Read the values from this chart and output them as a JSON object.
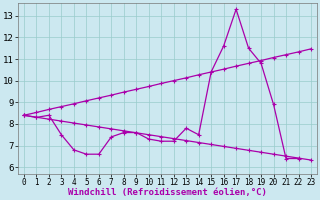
{
  "bg_color": "#cce8f0",
  "line_color": "#aa00aa",
  "marker": "+",
  "markersize": 3,
  "linewidth": 0.9,
  "xlabel": "Windchill (Refroidissement éolien,°C)",
  "xlabel_fontsize": 6.5,
  "ylabel_ticks": [
    6,
    7,
    8,
    9,
    10,
    11,
    12,
    13
  ],
  "xlabel_ticks": [
    0,
    1,
    2,
    3,
    4,
    5,
    6,
    7,
    8,
    9,
    10,
    11,
    12,
    13,
    14,
    15,
    16,
    17,
    18,
    19,
    20,
    21,
    22,
    23
  ],
  "xlim": [
    -0.5,
    23.5
  ],
  "ylim": [
    5.7,
    13.6
  ],
  "curve1_x": [
    0,
    1,
    2,
    3,
    4,
    5,
    6,
    7,
    8,
    9,
    10,
    11,
    12,
    13,
    14,
    15,
    16,
    17,
    18,
    19,
    20,
    21,
    22
  ],
  "curve1_y": [
    8.4,
    8.3,
    8.4,
    7.5,
    6.8,
    6.6,
    6.6,
    7.4,
    7.6,
    7.6,
    7.3,
    7.2,
    7.2,
    7.8,
    7.5,
    10.4,
    11.6,
    13.3,
    11.5,
    10.8,
    8.9,
    6.4,
    6.4
  ],
  "curve2_x": [
    0,
    1,
    2,
    3,
    4,
    5,
    6,
    7,
    8,
    9,
    10,
    11,
    12,
    13,
    14,
    15,
    16,
    17,
    18,
    19,
    20,
    21,
    22,
    23
  ],
  "curve2_y": [
    8.4,
    8.53,
    8.67,
    8.8,
    8.93,
    9.07,
    9.2,
    9.33,
    9.47,
    9.6,
    9.73,
    9.87,
    10.0,
    10.13,
    10.27,
    10.4,
    10.53,
    10.67,
    10.8,
    10.93,
    11.07,
    11.2,
    11.33,
    11.47
  ],
  "curve3_x": [
    0,
    1,
    2,
    3,
    4,
    5,
    6,
    7,
    8,
    9,
    10,
    11,
    12,
    13,
    14,
    15,
    16,
    17,
    18,
    19,
    20,
    21,
    22,
    23
  ],
  "curve3_y": [
    8.4,
    8.31,
    8.22,
    8.13,
    8.04,
    7.95,
    7.86,
    7.77,
    7.68,
    7.59,
    7.5,
    7.41,
    7.32,
    7.23,
    7.14,
    7.05,
    6.96,
    6.87,
    6.78,
    6.69,
    6.6,
    6.51,
    6.42,
    6.33
  ],
  "grid_color": "#99cccc",
  "grid_linewidth": 0.5,
  "tick_fontsize": 5.5,
  "ytick_fontsize": 6.5
}
